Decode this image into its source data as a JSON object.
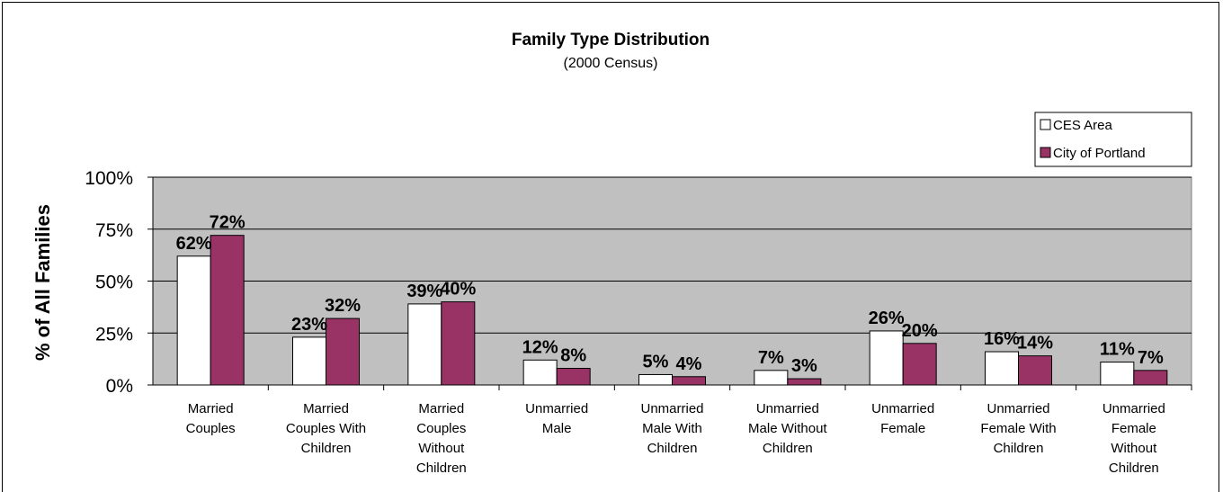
{
  "chart_data": {
    "type": "bar",
    "title": "Family Type Distribution",
    "subtitle": "(2000 Census)",
    "ylabel": "% of All Families",
    "xlabel": "",
    "ylim": [
      0,
      100
    ],
    "yticks": [
      "0%",
      "25%",
      "50%",
      "75%",
      "100%"
    ],
    "ytick_values": [
      0,
      25,
      50,
      75,
      100
    ],
    "grid": true,
    "legend_position": "top-right",
    "categories": [
      [
        "Married",
        "Couples"
      ],
      [
        "Married",
        "Couples With",
        "Children"
      ],
      [
        "Married",
        "Couples",
        "Without",
        "Children"
      ],
      [
        "Unmarried",
        "Male"
      ],
      [
        "Unmarried",
        "Male With",
        "Children"
      ],
      [
        "Unmarried",
        "Male Without",
        "Children"
      ],
      [
        "Unmarried",
        "Female"
      ],
      [
        "Unmarried",
        "Female With",
        "Children"
      ],
      [
        "Unmarried",
        "Female",
        "Without",
        "Children"
      ]
    ],
    "series": [
      {
        "name": "CES Area",
        "color": "#ffffff",
        "values": [
          62,
          23,
          39,
          12,
          5,
          7,
          26,
          16,
          11
        ],
        "labels": [
          "62%",
          "23%",
          "39%",
          "12%",
          "5%",
          "7%",
          "26%",
          "16%",
          "11%"
        ]
      },
      {
        "name": "City of Portland",
        "color": "#993366",
        "values": [
          72,
          32,
          40,
          8,
          4,
          3,
          20,
          14,
          7
        ],
        "labels": [
          "72%",
          "32%",
          "40%",
          "8%",
          "4%",
          "3%",
          "20%",
          "14%",
          "7%"
        ]
      }
    ],
    "plot_background": "#c0c0c0"
  }
}
